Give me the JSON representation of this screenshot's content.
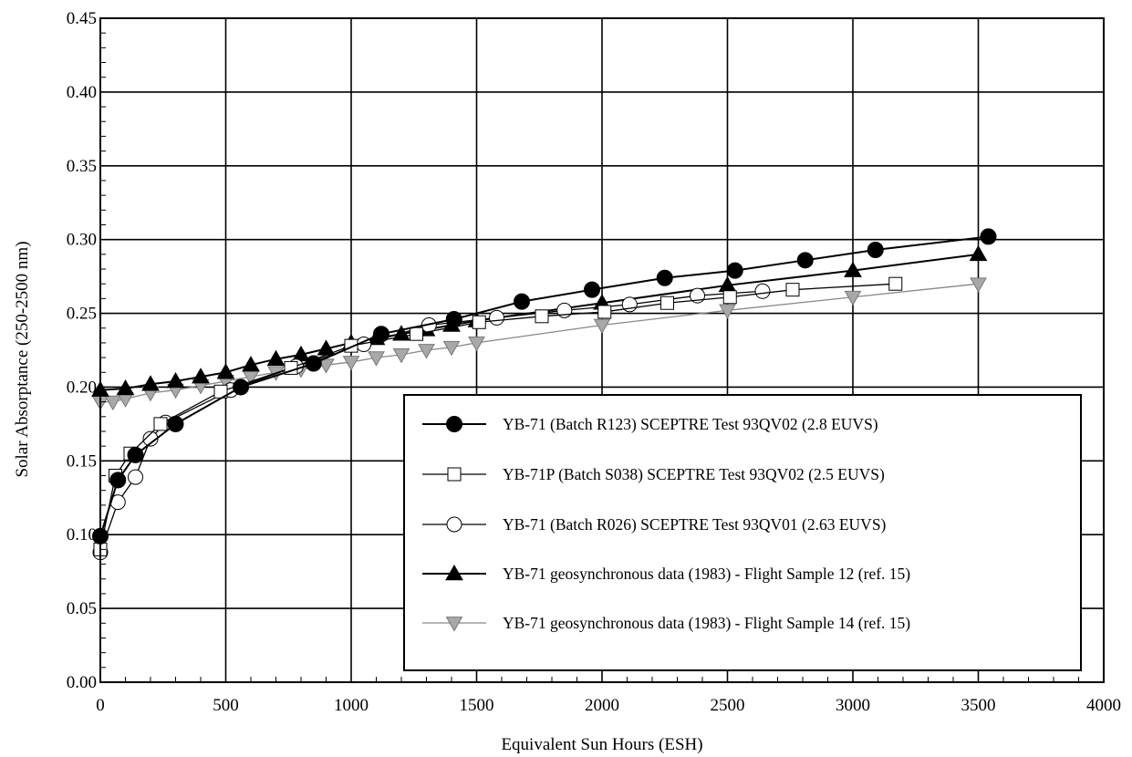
{
  "chart_data": {
    "type": "line",
    "title": "",
    "xlabel": "Equivalent Sun Hours (ESH)",
    "ylabel": "Solar Absorptance (250-2500 nm)",
    "xlim": [
      0,
      4000
    ],
    "ylim": [
      0,
      0.45
    ],
    "x_ticks": [
      0,
      500,
      1000,
      1500,
      2000,
      2500,
      3000,
      3500,
      4000
    ],
    "y_ticks": [
      0.0,
      0.05,
      0.1,
      0.15,
      0.2,
      0.25,
      0.3,
      0.35,
      0.4,
      0.45
    ],
    "x_tick_labels": [
      "0",
      "500",
      "1000",
      "1500",
      "2000",
      "2500",
      "3000",
      "3500",
      "4000"
    ],
    "y_tick_labels": [
      "0.00",
      "0.05",
      "0.10",
      "0.15",
      "0.20",
      "0.25",
      "0.30",
      "0.35",
      "0.40",
      "0.45"
    ],
    "grid": true,
    "legend_position": "lower-right",
    "series": [
      {
        "name": "YB-71 (Batch R123) SCEPTRE Test 93QV02 (2.8 EUVS)",
        "marker": "filled-circle",
        "points": [
          [
            0,
            0.099
          ],
          [
            70,
            0.137
          ],
          [
            140,
            0.154
          ],
          [
            300,
            0.175
          ],
          [
            560,
            0.2
          ],
          [
            850,
            0.216
          ],
          [
            1120,
            0.236
          ],
          [
            1410,
            0.246
          ],
          [
            1680,
            0.258
          ],
          [
            1960,
            0.266
          ],
          [
            2250,
            0.274
          ],
          [
            2530,
            0.279
          ],
          [
            2810,
            0.286
          ],
          [
            3090,
            0.293
          ],
          [
            3540,
            0.302
          ]
        ]
      },
      {
        "name": "YB-71P (Batch S038) SCEPTRE Test 93QV02 (2.5 EUVS)",
        "marker": "open-square",
        "points": [
          [
            0,
            0.09
          ],
          [
            60,
            0.14
          ],
          [
            120,
            0.155
          ],
          [
            240,
            0.175
          ],
          [
            480,
            0.197
          ],
          [
            760,
            0.213
          ],
          [
            1000,
            0.228
          ],
          [
            1260,
            0.236
          ],
          [
            1510,
            0.244
          ],
          [
            1760,
            0.248
          ],
          [
            2010,
            0.251
          ],
          [
            2260,
            0.257
          ],
          [
            2510,
            0.261
          ],
          [
            2760,
            0.266
          ],
          [
            3170,
            0.27
          ]
        ]
      },
      {
        "name": "YB-71 (Batch R026) SCEPTRE Test 93QV01 (2.63 EUVS)",
        "marker": "open-circle",
        "points": [
          [
            0,
            0.088
          ],
          [
            70,
            0.122
          ],
          [
            140,
            0.139
          ],
          [
            200,
            0.165
          ],
          [
            260,
            0.176
          ],
          [
            520,
            0.198
          ],
          [
            780,
            0.214
          ],
          [
            1050,
            0.229
          ],
          [
            1310,
            0.242
          ],
          [
            1580,
            0.247
          ],
          [
            1850,
            0.252
          ],
          [
            2110,
            0.256
          ],
          [
            2380,
            0.262
          ],
          [
            2640,
            0.265
          ]
        ]
      },
      {
        "name": "YB-71 geosynchronous data (1983) - Flight Sample 12 (ref. 15)",
        "marker": "filled-triangle-up",
        "points": [
          [
            0,
            0.198
          ],
          [
            100,
            0.199
          ],
          [
            200,
            0.202
          ],
          [
            300,
            0.204
          ],
          [
            400,
            0.207
          ],
          [
            500,
            0.21
          ],
          [
            600,
            0.215
          ],
          [
            700,
            0.219
          ],
          [
            800,
            0.222
          ],
          [
            900,
            0.226
          ],
          [
            1000,
            0.23
          ],
          [
            1100,
            0.233
          ],
          [
            1200,
            0.236
          ],
          [
            1300,
            0.239
          ],
          [
            1400,
            0.242
          ],
          [
            1500,
            0.245
          ],
          [
            2000,
            0.257
          ],
          [
            2500,
            0.269
          ],
          [
            3000,
            0.279
          ],
          [
            3500,
            0.29
          ]
        ]
      },
      {
        "name": "YB-71 geosynchronous data (1983) - Flight Sample 14 (ref. 15)",
        "marker": "filled-triangle-down",
        "points": [
          [
            0,
            0.19
          ],
          [
            50,
            0.19
          ],
          [
            100,
            0.192
          ],
          [
            200,
            0.196
          ],
          [
            300,
            0.198
          ],
          [
            400,
            0.201
          ],
          [
            500,
            0.204
          ],
          [
            600,
            0.207
          ],
          [
            700,
            0.21
          ],
          [
            800,
            0.212
          ],
          [
            900,
            0.215
          ],
          [
            1000,
            0.217
          ],
          [
            1100,
            0.22
          ],
          [
            1200,
            0.222
          ],
          [
            1300,
            0.225
          ],
          [
            1400,
            0.227
          ],
          [
            1500,
            0.23
          ],
          [
            2000,
            0.242
          ],
          [
            2500,
            0.252
          ],
          [
            3000,
            0.261
          ],
          [
            3500,
            0.27
          ]
        ]
      }
    ]
  }
}
